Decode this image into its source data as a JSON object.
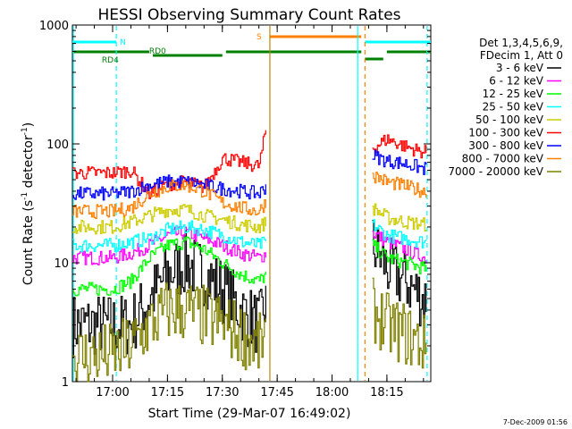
{
  "chart_data": {
    "type": "line",
    "title": "HESSI Observing Summary Count Rates",
    "xlabel": "Start Time (29-Mar-07 16:49:02)",
    "ylabel_main": "Count Rate (s",
    "ylabel_sup1": "-1",
    "ylabel_mid": " detector",
    "ylabel_sup2": "-1",
    "ylabel_end": ")",
    "yscale": "log",
    "ylim": [
      1,
      1000
    ],
    "y_ticks": [
      "1",
      "10",
      "100",
      "1000"
    ],
    "xlim": [
      "16:49",
      "18:27"
    ],
    "x_ticks": [
      "17:00",
      "17:15",
      "17:30",
      "17:45",
      "18:00",
      "18:15"
    ],
    "grid": false,
    "legend_placement": "right",
    "legend_header": [
      "Det 1,3,4,5,6,9,",
      "FDecim 1, Att 0"
    ],
    "timestamp": "7-Dec-2009 01:56",
    "series": [
      {
        "name": "3 - 6 keV",
        "color": "#000000",
        "x": [
          "16:49",
          "17:00",
          "17:05",
          "17:10",
          "17:15",
          "17:20",
          "17:25",
          "17:30",
          "17:35",
          "17:40",
          "17:42",
          "18:11",
          "18:15",
          "18:20",
          "18:25"
        ],
        "y": [
          3,
          3,
          3,
          5,
          8,
          10,
          8,
          6,
          4,
          3,
          5,
          14,
          9,
          7,
          5
        ]
      },
      {
        "name": "6 - 12 keV",
        "color": "#ff00ff",
        "x": [
          "16:49",
          "17:00",
          "17:05",
          "17:10",
          "17:15",
          "17:20",
          "17:25",
          "17:30",
          "17:35",
          "17:40",
          "17:42",
          "18:11",
          "18:15",
          "18:20",
          "18:25"
        ],
        "y": [
          11,
          11,
          12,
          14,
          17,
          18,
          16,
          14,
          12,
          11,
          12,
          18,
          15,
          13,
          11
        ]
      },
      {
        "name": "12 - 25 keV",
        "color": "#00ff00",
        "x": [
          "16:49",
          "17:00",
          "17:05",
          "17:10",
          "17:15",
          "17:20",
          "17:25",
          "17:30",
          "17:35",
          "17:40",
          "17:42",
          "18:11",
          "18:15",
          "18:20",
          "18:25"
        ],
        "y": [
          6,
          6,
          7,
          11,
          14,
          15,
          13,
          10,
          8,
          7,
          8,
          14,
          11,
          10,
          9
        ]
      },
      {
        "name": "25 - 50 keV",
        "color": "#00ffff",
        "x": [
          "16:49",
          "17:00",
          "17:05",
          "17:10",
          "17:15",
          "17:20",
          "17:25",
          "17:30",
          "17:35",
          "17:40",
          "17:42",
          "18:11",
          "18:15",
          "18:20",
          "18:25"
        ],
        "y": [
          14,
          14,
          15,
          16,
          19,
          20,
          19,
          17,
          15,
          14,
          15,
          21,
          17,
          16,
          15
        ]
      },
      {
        "name": "50 - 100 keV",
        "color": "#cccc00",
        "x": [
          "16:49",
          "17:00",
          "17:05",
          "17:10",
          "17:15",
          "17:20",
          "17:25",
          "17:30",
          "17:35",
          "17:40",
          "17:42",
          "18:11",
          "18:15",
          "18:20",
          "18:25"
        ],
        "y": [
          20,
          20,
          22,
          25,
          28,
          28,
          25,
          23,
          21,
          20,
          22,
          29,
          24,
          22,
          21
        ]
      },
      {
        "name": "100 - 300 keV",
        "color": "#ff0000",
        "x": [
          "16:49",
          "17:00",
          "17:05",
          "17:10",
          "17:15",
          "17:20",
          "17:25",
          "17:30",
          "17:35",
          "17:40",
          "17:42",
          "18:11",
          "18:15",
          "18:20",
          "18:25"
        ],
        "y": [
          57,
          57,
          60,
          38,
          46,
          48,
          43,
          76,
          70,
          65,
          140,
          92,
          110,
          95,
          85
        ]
      },
      {
        "name": "300 - 800 keV",
        "color": "#0000ff",
        "x": [
          "16:49",
          "17:00",
          "17:05",
          "17:10",
          "17:15",
          "17:20",
          "17:25",
          "17:30",
          "17:35",
          "17:40",
          "17:42",
          "18:11",
          "18:15",
          "18:20",
          "18:25"
        ],
        "y": [
          38,
          38,
          40,
          45,
          48,
          48,
          45,
          42,
          40,
          38,
          45,
          80,
          72,
          68,
          62
        ]
      },
      {
        "name": "800 - 7000 keV",
        "color": "#ff8000",
        "x": [
          "16:49",
          "17:00",
          "17:05",
          "17:10",
          "17:15",
          "17:20",
          "17:25",
          "17:30",
          "17:35",
          "17:40",
          "17:42",
          "18:11",
          "18:15",
          "18:20",
          "18:25"
        ],
        "y": [
          27,
          27,
          29,
          38,
          44,
          45,
          40,
          32,
          29,
          27,
          33,
          55,
          48,
          44,
          40
        ]
      },
      {
        "name": "7000 - 20000 keV",
        "color": "#808000",
        "x": [
          "16:49",
          "17:00",
          "17:05",
          "17:10",
          "17:15",
          "17:20",
          "17:25",
          "17:30",
          "17:35",
          "17:40",
          "17:42",
          "18:11",
          "18:15",
          "18:20",
          "18:25"
        ],
        "y": [
          1.6,
          1.7,
          2,
          3,
          4,
          4,
          3.5,
          3,
          2.5,
          2,
          2.5,
          4,
          3,
          2.5,
          2
        ]
      }
    ],
    "annotations": [
      {
        "label": "N",
        "color": "#00ffff",
        "x": "17:01"
      },
      {
        "label": "S",
        "color": "#ff8000",
        "x": "17:43"
      },
      {
        "label": "RD0",
        "color": "#008000",
        "x": "17:09"
      },
      {
        "label": "RD4",
        "color": "#008000",
        "x": "16:59"
      }
    ]
  }
}
